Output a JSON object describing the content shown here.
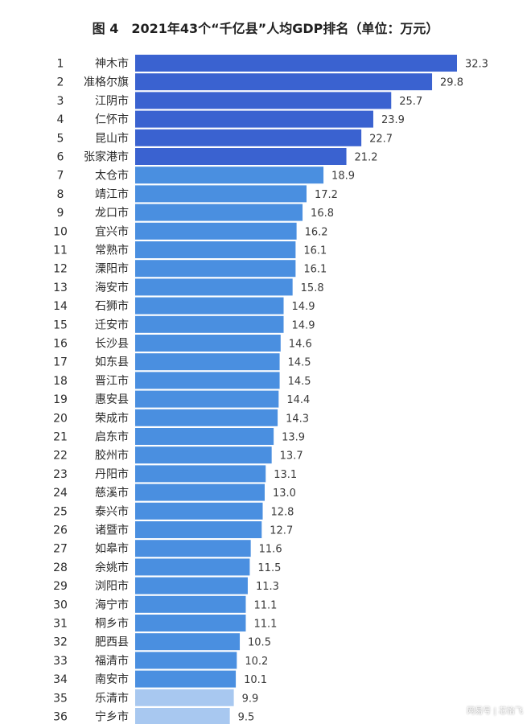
{
  "chart_data": {
    "type": "bar",
    "orientation": "horizontal",
    "title": "图 4　2021年43个“千亿县”人均GDP排名（单位：万元）",
    "categories": [
      "神木市",
      "准格尔旗",
      "江阴市",
      "仁怀市",
      "昆山市",
      "张家港市",
      "太仓市",
      "靖江市",
      "龙口市",
      "宜兴市",
      "常熟市",
      "溧阳市",
      "海安市",
      "石狮市",
      "迁安市",
      "长沙县",
      "如东县",
      "晋江市",
      "惠安县",
      "荣成市",
      "启东市",
      "胶州市",
      "丹阳市",
      "慈溪市",
      "泰兴市",
      "诸暨市",
      "如皋市",
      "余姚市",
      "浏阳市",
      "海宁市",
      "桐乡市",
      "肥西县",
      "福清市",
      "南安市",
      "乐清市",
      "宁乡市"
    ],
    "ranks": [
      "1",
      "2",
      "3",
      "4",
      "5",
      "6",
      "7",
      "8",
      "9",
      "10",
      "11",
      "12",
      "13",
      "14",
      "15",
      "16",
      "17",
      "18",
      "19",
      "20",
      "21",
      "22",
      "23",
      "24",
      "25",
      "26",
      "27",
      "28",
      "29",
      "30",
      "31",
      "32",
      "33",
      "34",
      "35",
      "36"
    ],
    "values": [
      32.3,
      29.8,
      25.7,
      23.9,
      22.7,
      21.2,
      18.9,
      17.2,
      16.8,
      16.2,
      16.1,
      16.1,
      15.8,
      14.9,
      14.9,
      14.6,
      14.5,
      14.5,
      14.4,
      14.3,
      13.9,
      13.7,
      13.1,
      13.0,
      12.8,
      12.7,
      11.6,
      11.5,
      11.3,
      11.1,
      11.1,
      10.5,
      10.2,
      10.1,
      9.9,
      9.5
    ],
    "value_labels": [
      "32.3",
      "29.8",
      "25.7",
      "23.9",
      "22.7",
      "21.2",
      "18.9",
      "17.2",
      "16.8",
      "16.2",
      "16.1",
      "16.1",
      "15.8",
      "14.9",
      "14.9",
      "14.6",
      "14.5",
      "14.5",
      "14.4",
      "14.3",
      "13.9",
      "13.7",
      "13.1",
      "13.0",
      "12.8",
      "12.7",
      "11.6",
      "11.5",
      "11.3",
      "11.1",
      "11.1",
      "10.5",
      "10.2",
      "10.1",
      "9.9",
      "9.5"
    ],
    "bar_colors": [
      "#3a62d0",
      "#3a62d0",
      "#3a62d0",
      "#3a62d0",
      "#3a62d0",
      "#3a62d0",
      "#4a8fe0",
      "#4a8fe0",
      "#4a8fe0",
      "#4a8fe0",
      "#4a8fe0",
      "#4a8fe0",
      "#4a8fe0",
      "#4a8fe0",
      "#4a8fe0",
      "#4a8fe0",
      "#4a8fe0",
      "#4a8fe0",
      "#4a8fe0",
      "#4a8fe0",
      "#4a8fe0",
      "#4a8fe0",
      "#4a8fe0",
      "#4a8fe0",
      "#4a8fe0",
      "#4a8fe0",
      "#4a8fe0",
      "#4a8fe0",
      "#4a8fe0",
      "#4a8fe0",
      "#4a8fe0",
      "#4a8fe0",
      "#4a8fe0",
      "#4a8fe0",
      "#a8c8f0",
      "#a8c8f0"
    ],
    "xlim": [
      0,
      32.3
    ],
    "grid": false,
    "legend": "none"
  },
  "watermark": "网易号 | 芯怡飞"
}
